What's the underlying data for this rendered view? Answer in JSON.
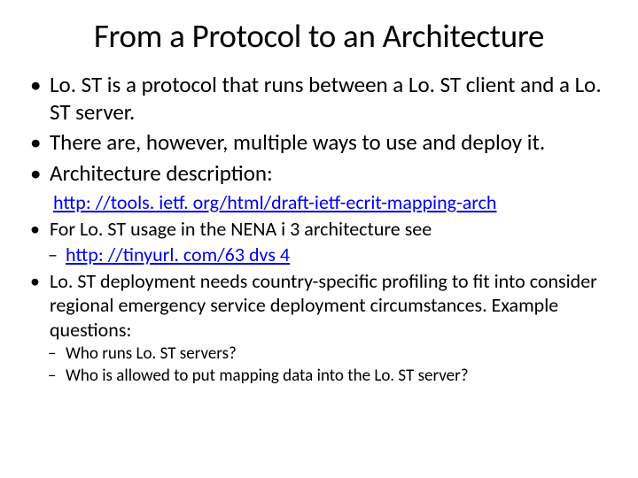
{
  "colors": {
    "background": "#ffffff",
    "text": "#000000",
    "link": "#0000ee"
  },
  "typography": {
    "title_fontsize": 37,
    "body_fontsize": 25,
    "sub_fontsize": 22,
    "small_fontsize": 19,
    "font_family": "Calibri"
  },
  "title": "From a Protocol to an Architecture",
  "bullets": {
    "b1": "Lo. ST is a protocol that runs between a Lo. ST client and a Lo. ST server.",
    "b2": "There are, however, multiple ways to use and deploy it.",
    "b3": "Architecture description:",
    "link1": "http: //tools. ietf. org/html/draft-ietf-ecrit-mapping-arch",
    "b4": "For Lo. ST usage in the NENA i 3 architecture see",
    "link2": "http: //tinyurl. com/63 dvs 4",
    "b5": "Lo. ST deployment needs country-specific profiling to fit into consider regional emergency service deployment circumstances. Example questions:",
    "q1": "Who runs Lo. ST servers?",
    "q2": "Who is allowed to put mapping data into the Lo. ST server?"
  }
}
